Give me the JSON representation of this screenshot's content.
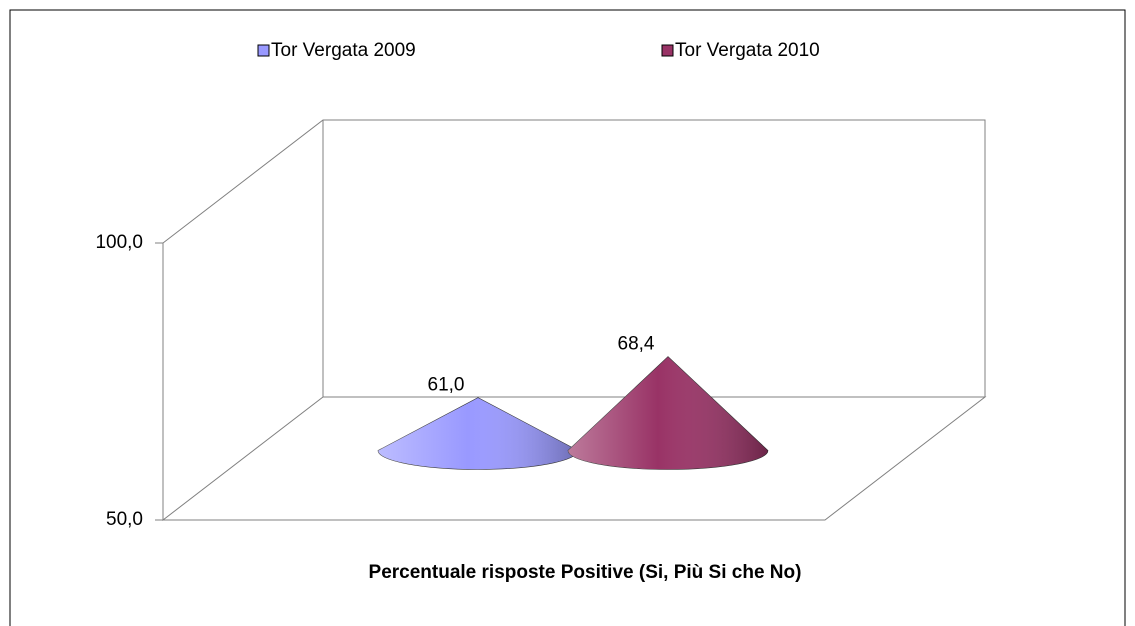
{
  "chart_data": {
    "type": "cone3d",
    "categories": [
      "Percentuale risposte Positive (Si, Più Si che No)"
    ],
    "series": [
      {
        "name": "Tor Vergata 2009",
        "color": "#9999ff",
        "values": [
          61.0
        ],
        "value_labels": [
          "61,0"
        ]
      },
      {
        "name": "Tor Vergata 2010",
        "color": "#993366",
        "values": [
          68.4
        ],
        "value_labels": [
          "68,4"
        ]
      }
    ],
    "ylim": [
      50,
      100
    ],
    "yticks": [
      {
        "value": 50,
        "label": "50,0"
      },
      {
        "value": 100,
        "label": "100,0"
      }
    ],
    "legend": "top"
  }
}
